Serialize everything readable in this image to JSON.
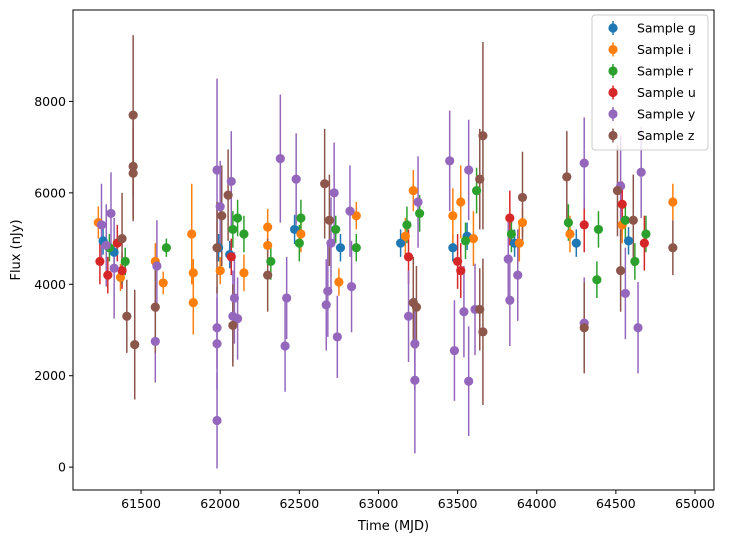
{
  "chart_data": {
    "type": "scatter",
    "title": "",
    "xlabel": "Time (MJD)",
    "ylabel": "Flux (nJy)",
    "xlim": [
      61070,
      65120
    ],
    "ylim": [
      -500,
      10000
    ],
    "x_ticks": [
      61500,
      62000,
      62500,
      63000,
      63500,
      64000,
      64500,
      65000
    ],
    "y_ticks": [
      0,
      2000,
      4000,
      6000,
      8000
    ],
    "legend_position": "top-right",
    "series": [
      {
        "name": "Sample g",
        "color": "#1f77b4",
        "points": [
          [
            61260,
            4950,
            300
          ],
          [
            61330,
            4700,
            280
          ],
          [
            61990,
            4800,
            300
          ],
          [
            62060,
            4650,
            300
          ],
          [
            62470,
            5200,
            320
          ],
          [
            62760,
            4800,
            300
          ],
          [
            63140,
            4900,
            300
          ],
          [
            63470,
            4800,
            300
          ],
          [
            63560,
            5050,
            300
          ],
          [
            63860,
            4900,
            300
          ],
          [
            64250,
            4900,
            300
          ],
          [
            64580,
            4950,
            300
          ]
        ]
      },
      {
        "name": "Sample i",
        "color": "#ff7f0e",
        "points": [
          [
            61230,
            5350,
            350
          ],
          [
            61370,
            4150,
            300
          ],
          [
            61590,
            4500,
            400
          ],
          [
            61640,
            4030,
            250
          ],
          [
            61820,
            5100,
            1100
          ],
          [
            61830,
            3600,
            700
          ],
          [
            61830,
            4250,
            300
          ],
          [
            62000,
            4300,
            300
          ],
          [
            62150,
            4250,
            400
          ],
          [
            62300,
            4850,
            400
          ],
          [
            62300,
            5250,
            400
          ],
          [
            62510,
            5100,
            400
          ],
          [
            62750,
            4050,
            300
          ],
          [
            62860,
            5500,
            300
          ],
          [
            63170,
            5050,
            400
          ],
          [
            63220,
            6050,
            450
          ],
          [
            63470,
            5500,
            600
          ],
          [
            63520,
            5800,
            800
          ],
          [
            63600,
            5000,
            600
          ],
          [
            63890,
            4900,
            400
          ],
          [
            63910,
            5350,
            300
          ],
          [
            64210,
            5100,
            400
          ],
          [
            64540,
            5300,
            400
          ],
          [
            64860,
            5800,
            400
          ]
        ]
      },
      {
        "name": "Sample r",
        "color": "#2ca02c",
        "points": [
          [
            61300,
            4800,
            300
          ],
          [
            61400,
            4500,
            300
          ],
          [
            61660,
            4800,
            200
          ],
          [
            62080,
            5200,
            400
          ],
          [
            62110,
            5450,
            400
          ],
          [
            62150,
            5100,
            400
          ],
          [
            62320,
            4500,
            400
          ],
          [
            62500,
            4900,
            400
          ],
          [
            62510,
            5450,
            400
          ],
          [
            62730,
            5200,
            300
          ],
          [
            62860,
            4800,
            300
          ],
          [
            63180,
            5300,
            400
          ],
          [
            63260,
            5550,
            400
          ],
          [
            63550,
            4950,
            400
          ],
          [
            63620,
            6050,
            500
          ],
          [
            63840,
            5100,
            400
          ],
          [
            64200,
            5350,
            400
          ],
          [
            64380,
            4100,
            400
          ],
          [
            64390,
            5200,
            400
          ],
          [
            64560,
            5400,
            400
          ],
          [
            64620,
            4500,
            400
          ],
          [
            64690,
            5100,
            400
          ]
        ]
      },
      {
        "name": "Sample u",
        "color": "#d62728",
        "points": [
          [
            61240,
            4500,
            500
          ],
          [
            61290,
            4200,
            400
          ],
          [
            61350,
            4900,
            400
          ],
          [
            61380,
            4300,
            400
          ],
          [
            62070,
            4600,
            400
          ],
          [
            63190,
            4600,
            600
          ],
          [
            63500,
            4500,
            600
          ],
          [
            63520,
            4300,
            600
          ],
          [
            63830,
            5450,
            600
          ],
          [
            64300,
            5300,
            600
          ],
          [
            64540,
            5750,
            500
          ],
          [
            64680,
            4900,
            600
          ]
        ]
      },
      {
        "name": "Sample y",
        "color": "#9467bd",
        "points": [
          [
            61250,
            5300,
            900
          ],
          [
            61280,
            4850,
            900
          ],
          [
            61310,
            5550,
            900
          ],
          [
            61330,
            4350,
            1100
          ],
          [
            61590,
            2750,
            900
          ],
          [
            61600,
            4400,
            1000
          ],
          [
            61980,
            6500,
            2000
          ],
          [
            61980,
            3050,
            900
          ],
          [
            61980,
            2700,
            1000
          ],
          [
            61980,
            1020,
            1050
          ],
          [
            62000,
            5700,
            1000
          ],
          [
            62070,
            6250,
            1100
          ],
          [
            62080,
            3300,
            1000
          ],
          [
            62090,
            3700,
            1000
          ],
          [
            62110,
            3250,
            900
          ],
          [
            62380,
            6750,
            1400
          ],
          [
            62410,
            2650,
            1000
          ],
          [
            62420,
            3700,
            900
          ],
          [
            62480,
            6300,
            1000
          ],
          [
            62670,
            3550,
            1000
          ],
          [
            62680,
            3850,
            1000
          ],
          [
            62700,
            4900,
            1000
          ],
          [
            62720,
            6000,
            1100
          ],
          [
            62740,
            2850,
            900
          ],
          [
            62820,
            5600,
            1000
          ],
          [
            62830,
            3950,
            1000
          ],
          [
            63190,
            3300,
            1000
          ],
          [
            63230,
            2700,
            1000
          ],
          [
            63230,
            1900,
            1600
          ],
          [
            63250,
            5800,
            1000
          ],
          [
            63450,
            6700,
            1100
          ],
          [
            63480,
            2550,
            1100
          ],
          [
            63540,
            3400,
            1000
          ],
          [
            63570,
            6500,
            1100
          ],
          [
            63570,
            1880,
            1200
          ],
          [
            63610,
            3450,
            1000
          ],
          [
            63820,
            4550,
            900
          ],
          [
            63830,
            3650,
            1000
          ],
          [
            63880,
            4200,
            1000
          ],
          [
            64300,
            3150,
            1000
          ],
          [
            64300,
            6650,
            1000
          ],
          [
            64530,
            6150,
            1100
          ],
          [
            64560,
            3800,
            1000
          ],
          [
            64640,
            3050,
            1000
          ],
          [
            64660,
            6450,
            1000
          ]
        ]
      },
      {
        "name": "Sample z",
        "color": "#8c564b",
        "points": [
          [
            61380,
            5000,
            1000
          ],
          [
            61410,
            3300,
            800
          ],
          [
            61450,
            7700,
            1750
          ],
          [
            61450,
            6580,
            1200
          ],
          [
            61450,
            6430,
            1000
          ],
          [
            61460,
            2680,
            1200
          ],
          [
            61590,
            3500,
            1000
          ],
          [
            61980,
            4800,
            1000
          ],
          [
            62010,
            5500,
            1100
          ],
          [
            62050,
            5950,
            1000
          ],
          [
            62080,
            3100,
            900
          ],
          [
            62300,
            4200,
            800
          ],
          [
            62660,
            6200,
            1200
          ],
          [
            62690,
            5400,
            1000
          ],
          [
            63220,
            3600,
            1000
          ],
          [
            63240,
            3500,
            900
          ],
          [
            63640,
            6300,
            1100
          ],
          [
            63660,
            7250,
            2050
          ],
          [
            63660,
            2960,
            1600
          ],
          [
            63640,
            3450,
            900
          ],
          [
            63910,
            5900,
            1000
          ],
          [
            64190,
            6350,
            1000
          ],
          [
            64300,
            3050,
            1000
          ],
          [
            64510,
            6050,
            1000
          ],
          [
            64530,
            4300,
            900
          ],
          [
            64610,
            5400,
            1000
          ],
          [
            64860,
            4800,
            600
          ]
        ]
      }
    ]
  }
}
